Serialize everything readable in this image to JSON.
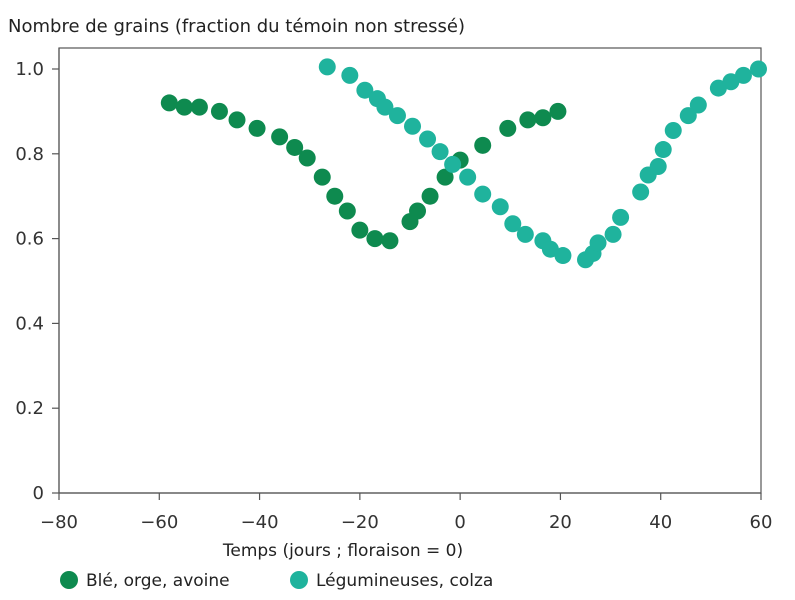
{
  "chart_data": {
    "type": "scatter",
    "title": "Nombre de grains (fraction du témoin non stressé)",
    "xlabel": "Temps (jours ; floraison = 0)",
    "ylabel": "",
    "xlim": [
      -80,
      60
    ],
    "ylim": [
      0,
      1.05
    ],
    "xticks": [
      -80,
      -60,
      -40,
      -20,
      0,
      20,
      40,
      60
    ],
    "yticks": [
      0,
      0.2,
      0.4,
      0.6,
      0.8,
      1.0
    ],
    "xtick_labels": [
      "−80",
      "−60",
      "−40",
      "−20",
      "0",
      "20",
      "40",
      "60"
    ],
    "ytick_labels": [
      "0",
      "0.2",
      "0.4",
      "0.6",
      "0.8",
      "1.0"
    ],
    "grid": false,
    "legend_position": "bottom-left",
    "series": [
      {
        "name": "Blé, orge, avoine",
        "color": "#0e8a4f",
        "points": [
          {
            "x": -58,
            "y": 0.92
          },
          {
            "x": -55,
            "y": 0.91
          },
          {
            "x": -52,
            "y": 0.91
          },
          {
            "x": -48,
            "y": 0.9
          },
          {
            "x": -44.5,
            "y": 0.88
          },
          {
            "x": -40.5,
            "y": 0.86
          },
          {
            "x": -36,
            "y": 0.84
          },
          {
            "x": -33,
            "y": 0.815
          },
          {
            "x": -30.5,
            "y": 0.79
          },
          {
            "x": -27.5,
            "y": 0.745
          },
          {
            "x": -25,
            "y": 0.7
          },
          {
            "x": -22.5,
            "y": 0.665
          },
          {
            "x": -20,
            "y": 0.62
          },
          {
            "x": -17,
            "y": 0.6
          },
          {
            "x": -14,
            "y": 0.595
          },
          {
            "x": -10,
            "y": 0.64
          },
          {
            "x": -8.5,
            "y": 0.665
          },
          {
            "x": -6,
            "y": 0.7
          },
          {
            "x": -3,
            "y": 0.745
          },
          {
            "x": 0,
            "y": 0.785
          },
          {
            "x": 4.5,
            "y": 0.82
          },
          {
            "x": 9.5,
            "y": 0.86
          },
          {
            "x": 13.5,
            "y": 0.88
          },
          {
            "x": 16.5,
            "y": 0.885
          },
          {
            "x": 19.5,
            "y": 0.9
          }
        ]
      },
      {
        "name": "Légumineuses, colza",
        "color": "#1fb39d",
        "points": [
          {
            "x": -26.5,
            "y": 1.005
          },
          {
            "x": -22,
            "y": 0.985
          },
          {
            "x": -19,
            "y": 0.95
          },
          {
            "x": -16.5,
            "y": 0.93
          },
          {
            "x": -15,
            "y": 0.91
          },
          {
            "x": -12.5,
            "y": 0.89
          },
          {
            "x": -9.5,
            "y": 0.865
          },
          {
            "x": -6.5,
            "y": 0.835
          },
          {
            "x": -4,
            "y": 0.805
          },
          {
            "x": -1.5,
            "y": 0.775
          },
          {
            "x": 1.5,
            "y": 0.745
          },
          {
            "x": 4.5,
            "y": 0.705
          },
          {
            "x": 8,
            "y": 0.675
          },
          {
            "x": 10.5,
            "y": 0.635
          },
          {
            "x": 13,
            "y": 0.61
          },
          {
            "x": 16.5,
            "y": 0.595
          },
          {
            "x": 18,
            "y": 0.575
          },
          {
            "x": 20.5,
            "y": 0.56
          },
          {
            "x": 25,
            "y": 0.55
          },
          {
            "x": 26.5,
            "y": 0.565
          },
          {
            "x": 27.5,
            "y": 0.59
          },
          {
            "x": 30.5,
            "y": 0.61
          },
          {
            "x": 32,
            "y": 0.65
          },
          {
            "x": 36,
            "y": 0.71
          },
          {
            "x": 37.5,
            "y": 0.75
          },
          {
            "x": 39.5,
            "y": 0.77
          },
          {
            "x": 40.5,
            "y": 0.81
          },
          {
            "x": 42.5,
            "y": 0.855
          },
          {
            "x": 45.5,
            "y": 0.89
          },
          {
            "x": 47.5,
            "y": 0.915
          },
          {
            "x": 51.5,
            "y": 0.955
          },
          {
            "x": 54,
            "y": 0.97
          },
          {
            "x": 56.5,
            "y": 0.985
          },
          {
            "x": 59.5,
            "y": 1.0
          }
        ]
      }
    ]
  }
}
